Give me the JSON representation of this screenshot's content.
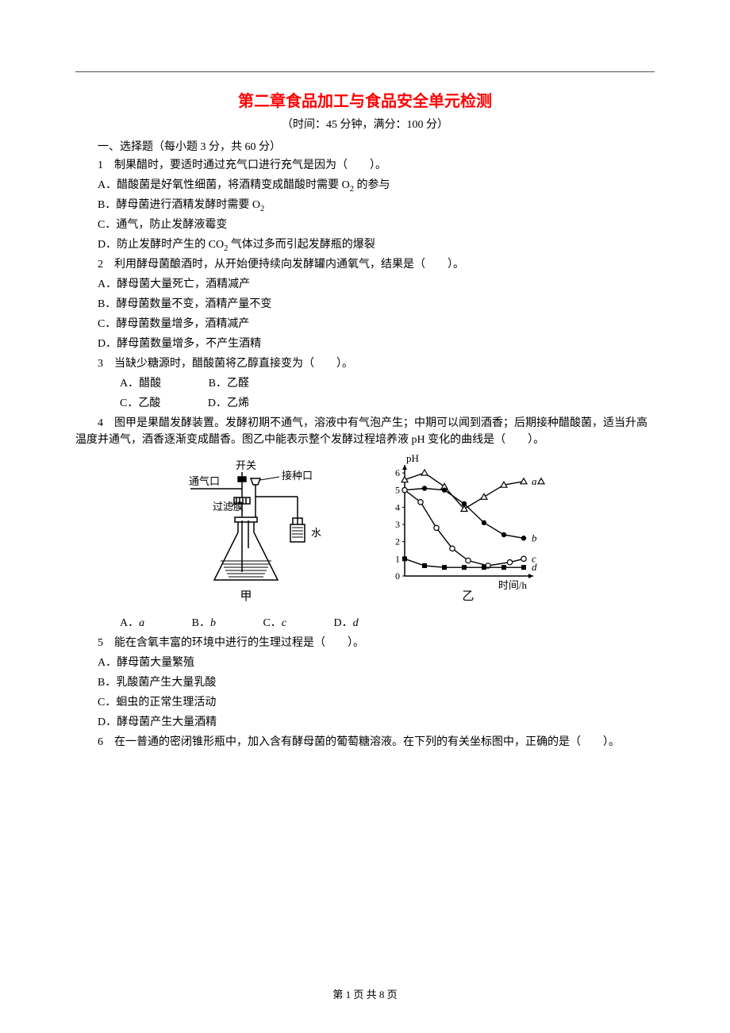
{
  "title": "第二章食品加工与食品安全单元检测",
  "subtitle": "（时间：45 分钟，满分：100 分）",
  "section1_heading": "一、选择题（每小题 3 分，共 60 分）",
  "q1": {
    "stem_pre": "1　制果醋时，要适时通过充气口进行充气是因为（　　）。",
    "A_pre": "A．醋酸菌是好氧性细菌，将酒精变成醋酸时需要 O",
    "A_sub": "2",
    "A_post": " 的参与",
    "B_pre": "B．酵母菌进行酒精发酵时需要 O",
    "B_sub": "2",
    "C": "C．通气，防止发酵液霉变",
    "D_pre": "D．防止发酵时产生的 CO",
    "D_sub": "2",
    "D_post": " 气体过多而引起发酵瓶的爆裂"
  },
  "q2": {
    "stem": "2　利用酵母菌酿酒时，从开始便持续向发酵罐内通氧气，结果是（　　）。",
    "A": "A．酵母菌大量死亡，酒精减产",
    "B": "B．酵母菌数量不变，酒精产量不变",
    "C": "C．酵母菌数量增多，酒精减产",
    "D": "D．酵母菌数量增多，不产生酒精"
  },
  "q3": {
    "stem": "3　当缺少糖源时，醋酸菌将乙醇直接变为（　　）。",
    "row1": {
      "A": "A．醋酸",
      "B": "B．乙醛"
    },
    "row2": {
      "C": "C．乙酸",
      "D": "D．乙烯"
    }
  },
  "q4": {
    "stem": "4　图甲是果醋发酵装置。发酵初期不通气，溶液中有气泡产生；中期可以闻到酒香；后期接种醋酸菌，适当升高温度并通气，酒香逐渐变成醋香。图乙中能表示整个发酵过程培养液 pH 变化的曲线是（　　）。",
    "options": {
      "A": "A．",
      "a": "a",
      "B": "B．",
      "b": "b",
      "C": "C．",
      "c": "c",
      "D": "D．",
      "d": "d"
    }
  },
  "figure": {
    "labels": {
      "switch": "开关",
      "inoculation": "接种口",
      "air_inlet": "通气口",
      "filter": "过滤膜",
      "water": "水",
      "jia": "甲",
      "yi": "乙",
      "ph": "pH",
      "time": "时间/h",
      "a": "a",
      "b": "b",
      "c": "c",
      "d": "d"
    },
    "chart": {
      "type": "line",
      "ylabel": "pH",
      "xlabel": "时间/h",
      "ylim": [
        0,
        6
      ],
      "yticks": [
        0,
        1,
        2,
        3,
        4,
        5,
        6
      ],
      "background_color": "#ffffff",
      "axis_color": "#000000",
      "series": {
        "a": {
          "marker": "triangle-open",
          "color": "#000000",
          "points": [
            [
              0,
              5.6
            ],
            [
              1,
              6.0
            ],
            [
              2,
              5.2
            ],
            [
              3,
              3.9
            ],
            [
              4,
              4.6
            ],
            [
              5,
              5.3
            ],
            [
              6,
              5.5
            ]
          ]
        },
        "b": {
          "marker": "circle-filled",
          "color": "#000000",
          "points": [
            [
              0,
              5.0
            ],
            [
              1,
              5.1
            ],
            [
              2,
              5.0
            ],
            [
              3,
              4.2
            ],
            [
              4,
              3.1
            ],
            [
              5,
              2.4
            ],
            [
              6,
              2.2
            ]
          ]
        },
        "c": {
          "marker": "circle-open",
          "color": "#000000",
          "points": [
            [
              0,
              5.0
            ],
            [
              0.8,
              4.3
            ],
            [
              1.6,
              2.8
            ],
            [
              2.4,
              1.6
            ],
            [
              3.2,
              0.9
            ],
            [
              4.2,
              0.6
            ],
            [
              5.3,
              0.8
            ],
            [
              6,
              1.0
            ]
          ]
        },
        "d": {
          "marker": "square-filled",
          "color": "#000000",
          "points": [
            [
              0,
              1.0
            ],
            [
              1,
              0.6
            ],
            [
              2,
              0.5
            ],
            [
              3,
              0.5
            ],
            [
              4,
              0.5
            ],
            [
              5,
              0.5
            ],
            [
              6,
              0.5
            ]
          ]
        }
      }
    }
  },
  "q5": {
    "stem": "5　能在含氧丰富的环境中进行的生理过程是（　　）。",
    "A": "A．酵母菌大量繁殖",
    "B": "B．乳酸菌产生大量乳酸",
    "C": "C．蛔虫的正常生理活动",
    "D": "D．酵母菌产生大量酒精"
  },
  "q6": {
    "stem": "6　在一普通的密闭锥形瓶中，加入含有酵母菌的葡萄糖溶液。在下列的有关坐标图中，正确的是（　　）。"
  },
  "footer": "第 1 页 共 8 页"
}
